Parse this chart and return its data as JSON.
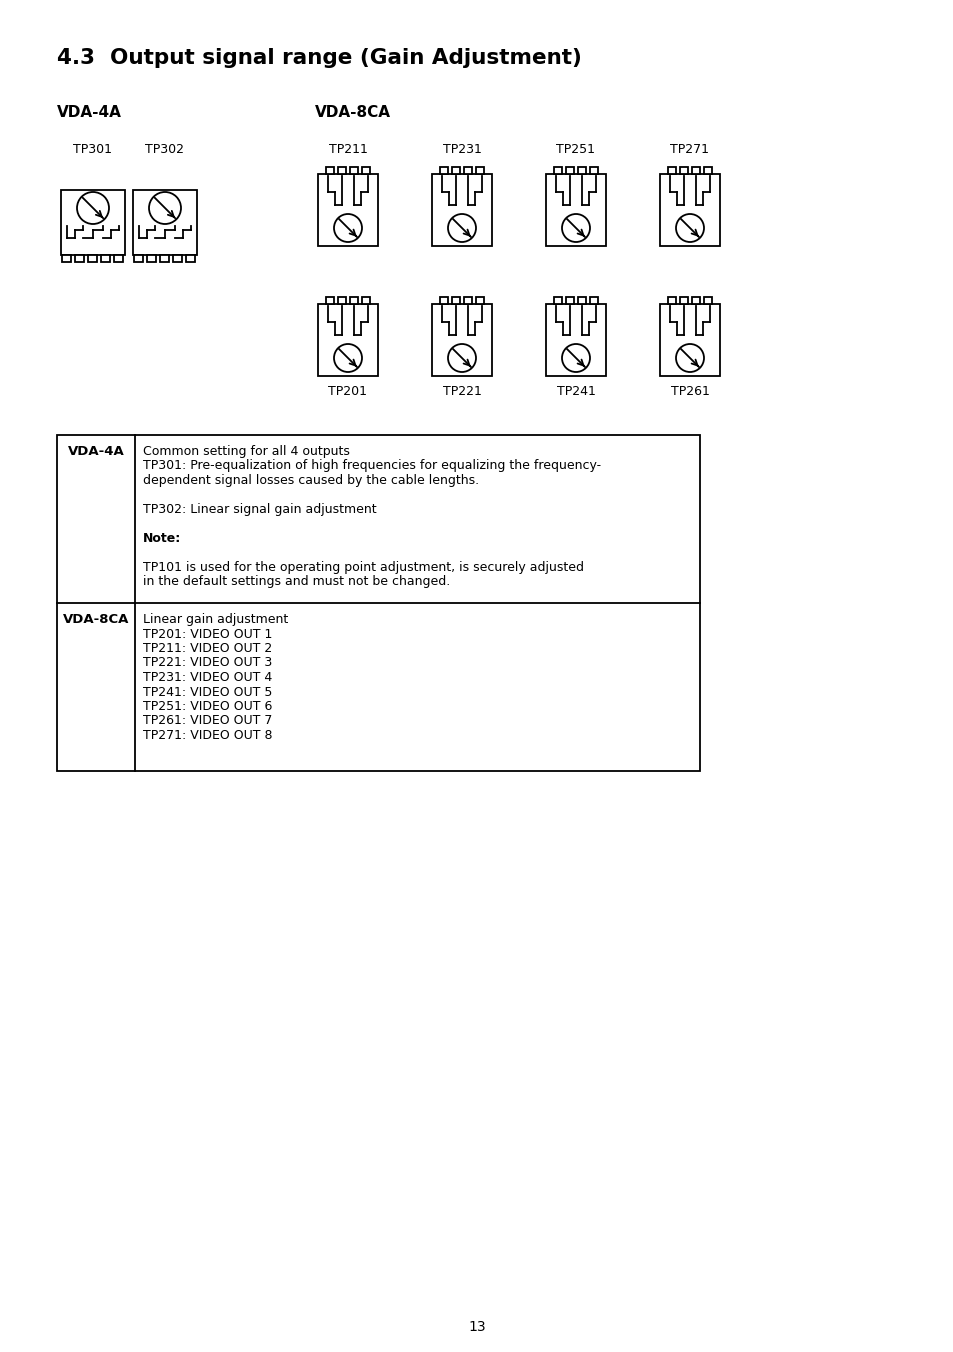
{
  "title": "4.3  Output signal range (Gain Adjustment)",
  "page_number": "13",
  "bg_color": "#ffffff",
  "text_color": "#000000",
  "vda4a_label": "VDA-4A",
  "vda8ca_label": "VDA-8CA",
  "row1_labels_left": [
    "TP301",
    "TP302"
  ],
  "row1_labels_right": [
    "TP211",
    "TP231",
    "TP251",
    "TP271"
  ],
  "row2_labels_right": [
    "TP201",
    "TP221",
    "TP241",
    "TP261"
  ],
  "table_row1_header": "VDA-4A",
  "table_row2_header": "VDA-8CA",
  "table_row1_lines": [
    [
      "Common setting for all 4 outputs",
      false
    ],
    [
      "TP301: Pre-equalization of high frequencies for equalizing the frequency-",
      false
    ],
    [
      "dependent signal losses caused by the cable lengths.",
      false
    ],
    [
      "",
      false
    ],
    [
      "TP302: Linear signal gain adjustment",
      false
    ],
    [
      "",
      false
    ],
    [
      "Note:",
      true
    ],
    [
      "",
      false
    ],
    [
      "TP101 is used for the operating point adjustment, is securely adjusted",
      false
    ],
    [
      "in the default settings and must not be changed.",
      false
    ]
  ],
  "table_row2_lines": [
    "Linear gain adjustment",
    "TP201: VIDEO OUT 1",
    "TP211: VIDEO OUT 2",
    "TP221: VIDEO OUT 3",
    "TP231: VIDEO OUT 4",
    "TP241: VIDEO OUT 5",
    "TP251: VIDEO OUT 6",
    "TP261: VIDEO OUT 7",
    "TP271: VIDEO OUT 8"
  ]
}
